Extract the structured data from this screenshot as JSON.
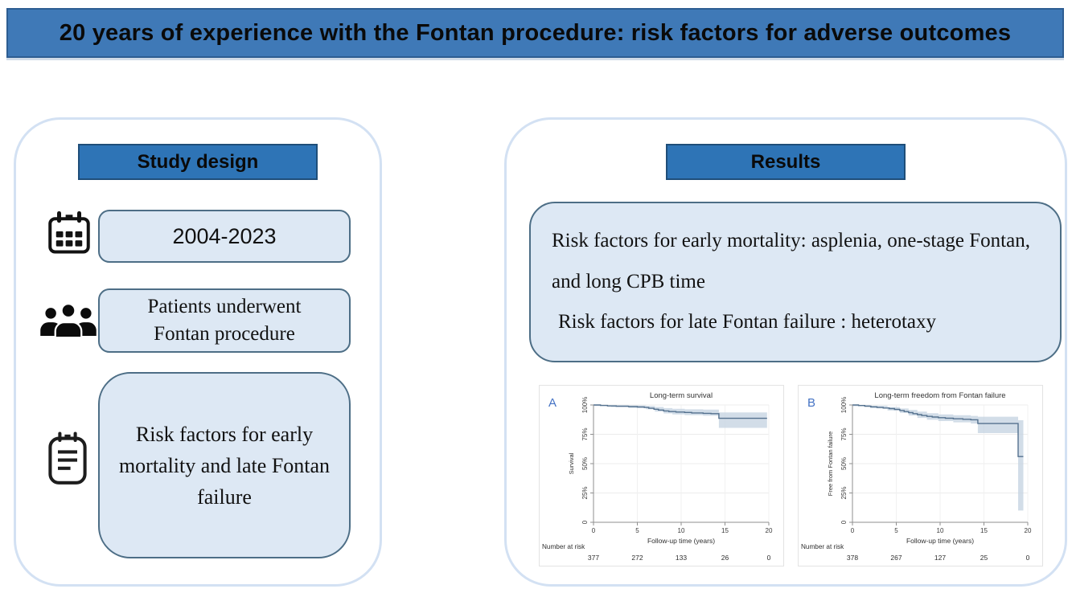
{
  "title_bar": {
    "text": "20 years of experience with the Fontan procedure: risk factors for adverse outcomes"
  },
  "colors": {
    "title_bar_blue": "#3f79b7",
    "header_blue": "#2e74b6",
    "header_border": "#1f4e79",
    "panel_border_blue": "#d3e1f3",
    "box_fill_blue": "#dde8f4",
    "box_border": "#4d6e86",
    "km_line": "#54718e",
    "km_ci_band": "#c7d4e2",
    "chart_panel_label_blue": "#4472c4",
    "axis_gray": "#8f8f8f",
    "grid_gray": "#ececec",
    "chart_text": "#3a3a3a"
  },
  "study_design": {
    "header": "Study design",
    "items": [
      {
        "icon": "calendar-icon",
        "text": "2004-2023"
      },
      {
        "icon": "patients-icon",
        "text": "Patients underwent Fontan procedure"
      },
      {
        "icon": "clipboard-icon",
        "text": "Risk factors for early mortality and late Fontan failure"
      }
    ]
  },
  "results": {
    "header": "Results",
    "findings": [
      "Risk factors for early mortality: asplenia, one-stage Fontan, and long CPB time",
      "Risk factors for late Fontan failure : heterotaxy"
    ]
  },
  "chart_data": [
    {
      "type": "line",
      "panel_label": "A",
      "title": "Long-term survival",
      "xlabel": "Follow-up time (years)",
      "ylabel": "Survival",
      "xlim": [
        0,
        20
      ],
      "ylim": [
        0,
        100
      ],
      "xticks": [
        0,
        5,
        10,
        15,
        20
      ],
      "yticks": [
        0,
        25,
        50,
        75,
        100
      ],
      "ytick_labels": [
        "0",
        "25%",
        "50%",
        "75%",
        "100%"
      ],
      "grid": true,
      "legend": "none",
      "number_at_risk_label": "Number at risk",
      "number_at_risk": [
        377,
        272,
        133,
        26,
        0
      ],
      "series": [
        {
          "name": "Kaplan-Meier survival estimate",
          "x": [
            0,
            0.8,
            1.6,
            2.6,
            4,
            5,
            5.8,
            6.3,
            6.9,
            7.4,
            8,
            8.6,
            9.4,
            10.4,
            11.2,
            12.5,
            13.4,
            14.3,
            19.8
          ],
          "y": [
            100,
            99.6,
            99.2,
            98.9,
            98.6,
            98.3,
            97.9,
            97.2,
            96.4,
            95.7,
            94.9,
            94.4,
            94,
            93.6,
            93.2,
            92.9,
            92.6,
            88.6,
            88.6
          ]
        }
      ],
      "ci": {
        "x": [
          0,
          2,
          4,
          6,
          7,
          8,
          9,
          10.4,
          12.5,
          14.3,
          19.8
        ],
        "upper": [
          100,
          99.9,
          99.6,
          99.2,
          98.3,
          97.3,
          96.8,
          96.3,
          96,
          93.6,
          93.6
        ],
        "lower": [
          99.2,
          98.2,
          97.5,
          96.3,
          94.3,
          92.8,
          92,
          91.4,
          90.8,
          80.5,
          80.5
        ]
      }
    },
    {
      "type": "line",
      "panel_label": "B",
      "title": "Long-term freedom from Fontan failure",
      "xlabel": "Follow-up time (years)",
      "ylabel": "Free from Fontan failure",
      "xlim": [
        0,
        20
      ],
      "ylim": [
        0,
        100
      ],
      "xticks": [
        0,
        5,
        10,
        15,
        20
      ],
      "yticks": [
        0,
        25,
        50,
        75,
        100
      ],
      "ytick_labels": [
        "0",
        "25%",
        "50%",
        "75%",
        "100%"
      ],
      "grid": true,
      "legend": "none",
      "number_at_risk_label": "Number at risk",
      "number_at_risk": [
        378,
        267,
        127,
        25,
        0
      ],
      "series": [
        {
          "name": "Kaplan-Meier freedom from Fontan failure estimate",
          "x": [
            0,
            0.7,
            1.4,
            2.1,
            2.8,
            3.5,
            4.2,
            4.8,
            5.4,
            5.9,
            6.4,
            6.9,
            7.4,
            7.9,
            8.5,
            9.1,
            9.8,
            10.6,
            11.5,
            12.6,
            13.5,
            14.3,
            18.8,
            18.9,
            19.5
          ],
          "y": [
            100,
            99.5,
            99,
            98.4,
            97.9,
            97.4,
            96.9,
            96.2,
            95.3,
            94.4,
            93.5,
            92.6,
            91.8,
            91,
            90.3,
            89.7,
            89.2,
            88.7,
            88.2,
            87.8,
            87.4,
            84.2,
            84.2,
            56,
            56
          ]
        }
      ],
      "ci": {
        "x": [
          0,
          2,
          4,
          5.4,
          6.4,
          7.4,
          8.5,
          9.8,
          11.5,
          13.5,
          14.3,
          18.8,
          18.9,
          19.5
        ],
        "upper": [
          100,
          99.4,
          98.2,
          97,
          95.8,
          94.3,
          93,
          92,
          91.2,
          90.7,
          90,
          90,
          87,
          87
        ],
        "lower": [
          99,
          97.2,
          95.3,
          93.2,
          91,
          89,
          87.4,
          86.3,
          85.2,
          84.2,
          76,
          76,
          10,
          10
        ]
      }
    }
  ]
}
